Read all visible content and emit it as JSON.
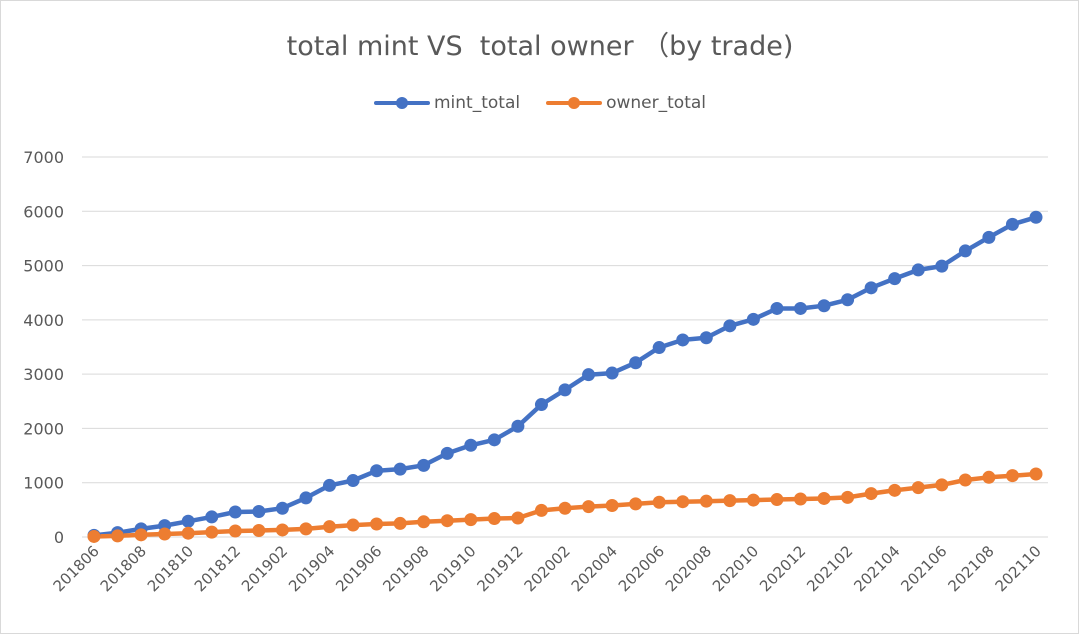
{
  "chart_data": {
    "type": "line",
    "title": "total mint VS  total owner （by trade)",
    "ylim": [
      0,
      7000
    ],
    "yticks": [
      "0",
      "1000",
      "2000",
      "3000",
      "4000",
      "5000",
      "6000",
      "7000"
    ],
    "tick_labels": [
      "201806",
      "201808",
      "201810",
      "201812",
      "201902",
      "201904",
      "201906",
      "201908",
      "201910",
      "201912",
      "202002",
      "202004",
      "202006",
      "202008",
      "202010",
      "202012",
      "202102",
      "202104",
      "202106",
      "202108",
      "202110"
    ],
    "grid": true,
    "legend_position": "top-center",
    "categories": [
      "201806",
      "201807",
      "201808",
      "201809",
      "201810",
      "201811",
      "201812",
      "201901",
      "201902",
      "201903",
      "201904",
      "201905",
      "201906",
      "201907",
      "201908",
      "201909",
      "201910",
      "201911",
      "201912",
      "202001",
      "202002",
      "202003",
      "202004",
      "202005",
      "202006",
      "202007",
      "202008",
      "202009",
      "202010",
      "202011",
      "202012",
      "202101",
      "202102",
      "202103",
      "202104",
      "202105",
      "202106",
      "202107",
      "202108",
      "202109",
      "202110"
    ],
    "series": [
      {
        "name": "mint_total",
        "color": "#4472c4",
        "values": [
          30,
          80,
          150,
          210,
          290,
          370,
          460,
          470,
          530,
          720,
          950,
          1040,
          1220,
          1250,
          1320,
          1540,
          1690,
          1790,
          2040,
          2440,
          2710,
          2990,
          3020,
          3210,
          3490,
          3630,
          3670,
          3890,
          4010,
          4210,
          4210,
          4260,
          4370,
          4590,
          4760,
          4920,
          4990,
          5270,
          5520,
          5760,
          5890
        ]
      },
      {
        "name": "owner_total",
        "color": "#ed7d31",
        "values": [
          10,
          20,
          40,
          55,
          70,
          90,
          110,
          120,
          130,
          150,
          190,
          220,
          240,
          250,
          280,
          300,
          320,
          340,
          350,
          490,
          530,
          560,
          580,
          610,
          640,
          650,
          660,
          670,
          680,
          690,
          700,
          710,
          730,
          800,
          860,
          910,
          960,
          1050,
          1100,
          1130,
          1160
        ]
      }
    ]
  }
}
